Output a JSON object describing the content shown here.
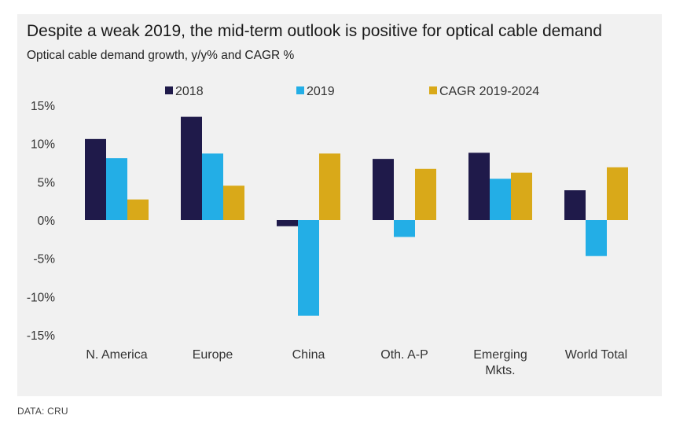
{
  "title": "Despite a weak 2019, the mid-term outlook is positive for optical cable demand",
  "subtitle": "Optical cable demand growth, y/y% and CAGR %",
  "source": "DATA: CRU",
  "colors": {
    "s2018": "#1f1a4a",
    "s2019": "#23aee6",
    "cagr": "#d9a919"
  },
  "chart_data": {
    "type": "bar",
    "title": "Despite a weak 2019, the mid-term outlook is positive for optical cable demand",
    "subtitle": "Optical cable demand growth, y/y% and CAGR %",
    "xlabel": "",
    "ylabel": "",
    "ylim": [
      -15,
      15
    ],
    "yticks": [
      15,
      10,
      5,
      0,
      -5,
      -10,
      -15
    ],
    "yticklabels": [
      "15%",
      "10%",
      "5%",
      "0%",
      "-5%",
      "-10%",
      "-15%"
    ],
    "grid": false,
    "legend": "top",
    "categories": [
      [
        "N. America"
      ],
      [
        "Europe"
      ],
      [
        "China"
      ],
      [
        "Oth. A-P"
      ],
      [
        "Emerging",
        "Mkts."
      ],
      [
        "World Total"
      ]
    ],
    "series": [
      {
        "name": "2018",
        "color": "#1f1a4a",
        "values": [
          10.6,
          13.5,
          -0.8,
          8.0,
          8.8,
          3.9
        ]
      },
      {
        "name": "2019",
        "color": "#23aee6",
        "values": [
          8.1,
          8.7,
          -12.5,
          -2.2,
          5.4,
          -4.7
        ]
      },
      {
        "name": "CAGR 2019-2024",
        "color": "#d9a919",
        "values": [
          2.7,
          4.5,
          8.7,
          6.7,
          6.2,
          6.9
        ]
      }
    ]
  }
}
